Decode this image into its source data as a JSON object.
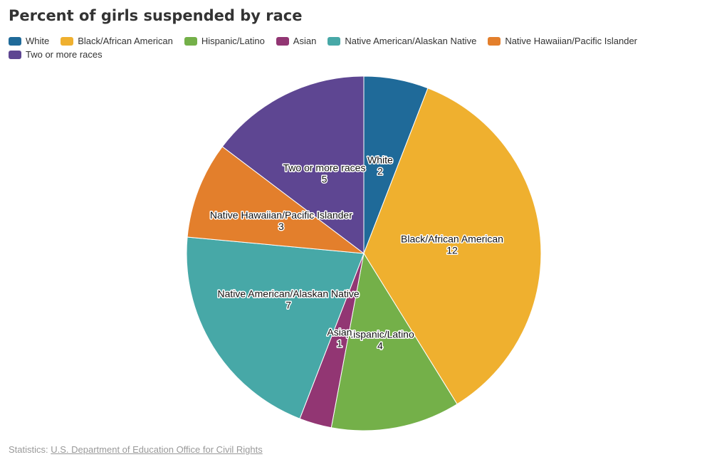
{
  "chart_data": {
    "type": "pie",
    "title": "Percent of girls suspended by race",
    "categories": [
      "White",
      "Black/African American",
      "Hispanic/Latino",
      "Asian",
      "Native American/Alaskan Native",
      "Native Hawaiian/Pacific Islander",
      "Two or more races"
    ],
    "values": [
      2,
      12,
      4,
      1,
      7,
      3,
      5
    ],
    "colors": [
      "#1f6a99",
      "#efb02f",
      "#74b049",
      "#923673",
      "#47a8a7",
      "#e37f2c",
      "#5e4692"
    ],
    "legend_position": "top"
  },
  "footer": {
    "prefix": "Statistics:",
    "source_link": "U.S. Department of Education Office for Civil Rights"
  }
}
